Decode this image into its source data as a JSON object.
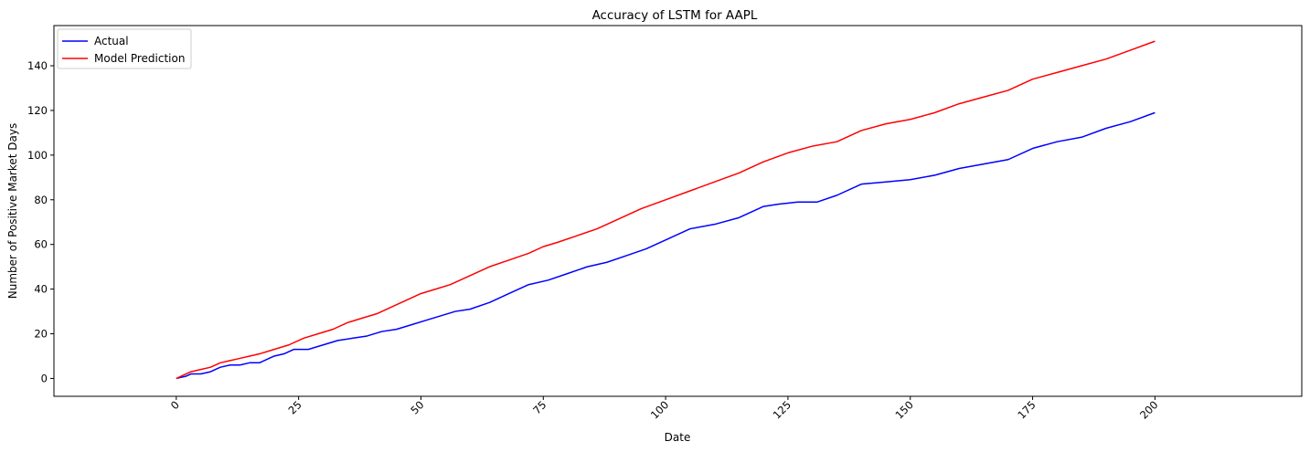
{
  "chart_data": {
    "type": "line",
    "title": "Accuracy of LSTM for AAPL",
    "xlabel": "Date",
    "ylabel": "Number of Positive Market Days",
    "xlim": [
      -25,
      230
    ],
    "ylim": [
      -8,
      158
    ],
    "xticks": [
      0,
      25,
      50,
      75,
      100,
      125,
      150,
      175,
      200
    ],
    "xtick_labels": [
      "0",
      "25",
      "50",
      "75",
      "100",
      "125",
      "150",
      "175",
      "200"
    ],
    "xtick_rotation": 45,
    "yticks": [
      0,
      20,
      40,
      60,
      80,
      100,
      120,
      140
    ],
    "ytick_labels": [
      "0",
      "20",
      "40",
      "60",
      "80",
      "100",
      "120",
      "140"
    ],
    "grid": false,
    "legend_position": "top-left",
    "series": [
      {
        "name": "Actual",
        "color": "#0000ff",
        "x": [
          0,
          2,
          3,
          5,
          7,
          9,
          11,
          13,
          15,
          17,
          20,
          22,
          24,
          27,
          30,
          33,
          36,
          39,
          42,
          45,
          48,
          51,
          54,
          57,
          60,
          64,
          68,
          72,
          76,
          80,
          84,
          88,
          92,
          96,
          100,
          105,
          110,
          115,
          120,
          123,
          127,
          131,
          135,
          140,
          145,
          150,
          155,
          160,
          165,
          170,
          175,
          180,
          185,
          190,
          195,
          200
        ],
        "y": [
          0,
          1,
          2,
          2,
          3,
          5,
          6,
          6,
          7,
          7,
          10,
          11,
          13,
          13,
          15,
          17,
          18,
          19,
          21,
          22,
          24,
          26,
          28,
          30,
          31,
          34,
          38,
          42,
          44,
          47,
          50,
          52,
          55,
          58,
          62,
          67,
          69,
          72,
          77,
          78,
          79,
          79,
          82,
          87,
          88,
          89,
          91,
          94,
          96,
          98,
          103,
          106,
          108,
          112,
          115,
          119
        ]
      },
      {
        "name": "Model Prediction",
        "color": "#ff0000",
        "x": [
          0,
          3,
          5,
          7,
          9,
          11,
          13,
          15,
          17,
          20,
          23,
          26,
          29,
          32,
          35,
          38,
          41,
          44,
          47,
          50,
          53,
          56,
          60,
          64,
          68,
          72,
          75,
          78,
          82,
          86,
          90,
          95,
          100,
          105,
          110,
          115,
          120,
          125,
          130,
          135,
          140,
          145,
          150,
          155,
          160,
          165,
          170,
          175,
          180,
          185,
          190,
          195,
          200
        ],
        "y": [
          0,
          3,
          4,
          5,
          7,
          8,
          9,
          10,
          11,
          13,
          15,
          18,
          20,
          22,
          25,
          27,
          29,
          32,
          35,
          38,
          40,
          42,
          46,
          50,
          53,
          56,
          59,
          61,
          64,
          67,
          71,
          76,
          80,
          84,
          88,
          92,
          97,
          101,
          104,
          106,
          111,
          114,
          116,
          119,
          123,
          126,
          129,
          134,
          137,
          140,
          143,
          147,
          151
        ]
      }
    ]
  }
}
